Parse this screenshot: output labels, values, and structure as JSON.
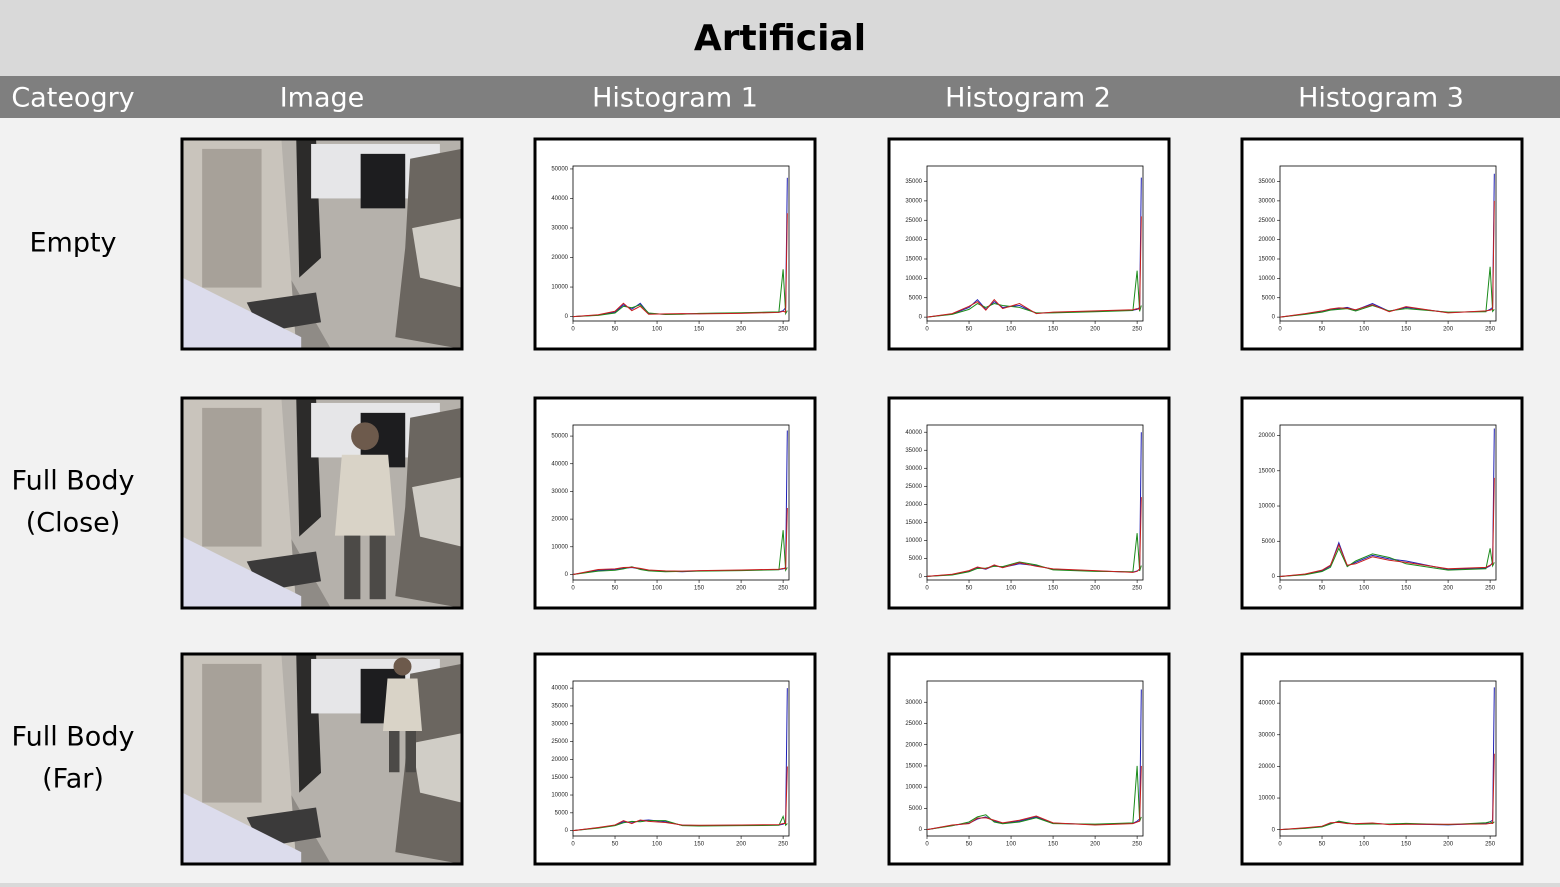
{
  "title": "Artificial",
  "headers": [
    "Cateogry",
    "Image",
    "Histogram 1",
    "Histogram 2",
    "Histogram 3"
  ],
  "rows": [
    {
      "category": [
        "Empty"
      ],
      "histograms": [
        {
          "type": "line",
          "x": [
            0,
            30,
            50,
            60,
            70,
            80,
            90,
            110,
            130,
            150,
            200,
            245,
            250,
            253,
            255
          ],
          "xlim": [
            0,
            257
          ],
          "xticks": [
            0,
            50,
            100,
            150,
            200,
            250
          ],
          "ylim": [
            -1500,
            51000
          ],
          "yticks": [
            0,
            10000,
            20000,
            30000,
            40000,
            50000
          ],
          "series": [
            {
              "color": "#1f1fb4",
              "values": [
                0,
                500,
                1500,
                4000,
                2500,
                4500,
                1000,
                800,
                900,
                1000,
                1200,
                1500,
                2000,
                3000,
                47000
              ]
            },
            {
              "color": "#1a8a1a",
              "values": [
                0,
                400,
                1200,
                3500,
                3000,
                4000,
                1200,
                700,
                800,
                1100,
                1300,
                1600,
                16000,
                1000,
                2000
              ]
            },
            {
              "color": "#c81e1e",
              "values": [
                0,
                600,
                1800,
                4500,
                2000,
                3500,
                800,
                900,
                1000,
                900,
                1100,
                1400,
                1800,
                1500,
                35000
              ]
            }
          ]
        },
        {
          "type": "line",
          "x": [
            0,
            30,
            50,
            60,
            70,
            80,
            90,
            110,
            130,
            150,
            200,
            245,
            250,
            253,
            255
          ],
          "xlim": [
            0,
            257
          ],
          "xticks": [
            0,
            50,
            100,
            150,
            200,
            250
          ],
          "ylim": [
            -1000,
            39000
          ],
          "yticks": [
            0,
            5000,
            10000,
            15000,
            20000,
            25000,
            30000,
            35000
          ],
          "series": [
            {
              "color": "#1f1fb4",
              "values": [
                0,
                800,
                2500,
                4500,
                2000,
                4000,
                2500,
                3000,
                1000,
                1200,
                1500,
                1800,
                2000,
                2500,
                36000
              ]
            },
            {
              "color": "#1a8a1a",
              "values": [
                0,
                700,
                2000,
                3500,
                2500,
                3500,
                3000,
                2500,
                1100,
                1100,
                1400,
                1700,
                12000,
                1500,
                3000
              ]
            },
            {
              "color": "#c81e1e",
              "values": [
                0,
                900,
                2800,
                4000,
                1800,
                4500,
                2200,
                3500,
                900,
                1300,
                1600,
                1900,
                2200,
                2000,
                26000
              ]
            }
          ]
        },
        {
          "type": "line",
          "x": [
            0,
            30,
            50,
            60,
            70,
            80,
            90,
            110,
            130,
            150,
            200,
            245,
            250,
            253,
            255
          ],
          "xlim": [
            0,
            257
          ],
          "xticks": [
            0,
            50,
            100,
            150,
            200,
            250
          ],
          "ylim": [
            -1000,
            39000
          ],
          "yticks": [
            0,
            5000,
            10000,
            15000,
            20000,
            25000,
            30000,
            35000
          ],
          "series": [
            {
              "color": "#1f1fb4",
              "values": [
                0,
                800,
                1500,
                2000,
                2200,
                2500,
                1800,
                3500,
                1500,
                2500,
                1200,
                1500,
                2000,
                2500,
                37000
              ]
            },
            {
              "color": "#1a8a1a",
              "values": [
                0,
                700,
                1300,
                1800,
                2000,
                2200,
                1600,
                3000,
                1600,
                2200,
                1300,
                1400,
                13000,
                1500,
                2000
              ]
            },
            {
              "color": "#c81e1e",
              "values": [
                0,
                900,
                1600,
                2100,
                2400,
                2300,
                1900,
                3200,
                1400,
                2700,
                1100,
                1600,
                1800,
                2000,
                30000
              ]
            }
          ]
        }
      ]
    },
    {
      "category": [
        "Full Body",
        "(Close)"
      ],
      "histograms": [
        {
          "type": "line",
          "x": [
            0,
            30,
            50,
            60,
            70,
            80,
            90,
            110,
            130,
            150,
            200,
            245,
            250,
            253,
            255
          ],
          "xlim": [
            0,
            257
          ],
          "xticks": [
            0,
            50,
            100,
            150,
            200,
            250
          ],
          "ylim": [
            -2000,
            54000
          ],
          "yticks": [
            0,
            10000,
            20000,
            30000,
            40000,
            50000
          ],
          "series": [
            {
              "color": "#1f1fb4",
              "values": [
                0,
                1500,
                1800,
                2200,
                2500,
                2000,
                1500,
                1200,
                1000,
                1300,
                1500,
                1800,
                2000,
                2500,
                52000
              ]
            },
            {
              "color": "#1a8a1a",
              "values": [
                0,
                1200,
                1500,
                2000,
                2800,
                1800,
                1300,
                1000,
                1100,
                1200,
                1400,
                1700,
                16000,
                1500,
                2500
              ]
            },
            {
              "color": "#c81e1e",
              "values": [
                0,
                1800,
                2000,
                2500,
                2600,
                2200,
                1600,
                1300,
                1200,
                1400,
                1600,
                1900,
                2200,
                2000,
                24000
              ]
            }
          ]
        },
        {
          "type": "line",
          "x": [
            0,
            30,
            50,
            60,
            70,
            80,
            90,
            110,
            130,
            150,
            200,
            245,
            250,
            253,
            255
          ],
          "xlim": [
            0,
            257
          ],
          "xticks": [
            0,
            50,
            100,
            150,
            200,
            250
          ],
          "ylim": [
            -1000,
            42000
          ],
          "yticks": [
            0,
            5000,
            10000,
            15000,
            20000,
            25000,
            30000,
            35000,
            40000
          ],
          "series": [
            {
              "color": "#1f1fb4",
              "values": [
                0,
                500,
                1500,
                2500,
                2000,
                3000,
                2500,
                3500,
                3000,
                2000,
                1500,
                1200,
                1500,
                2000,
                40000
              ]
            },
            {
              "color": "#1a8a1a",
              "values": [
                0,
                400,
                1300,
                2200,
                2300,
                2800,
                2700,
                4000,
                3200,
                1800,
                1400,
                1300,
                12000,
                1500,
                3000
              ]
            },
            {
              "color": "#c81e1e",
              "values": [
                0,
                600,
                1600,
                2600,
                2100,
                3200,
                2400,
                3800,
                2800,
                2100,
                1600,
                1100,
                1400,
                2000,
                22000
              ]
            }
          ]
        },
        {
          "type": "line",
          "x": [
            0,
            30,
            50,
            60,
            70,
            80,
            90,
            110,
            130,
            150,
            200,
            245,
            250,
            253,
            255
          ],
          "xlim": [
            0,
            257
          ],
          "xticks": [
            0,
            50,
            100,
            150,
            200,
            250
          ],
          "ylim": [
            -500,
            21500
          ],
          "yticks": [
            0,
            5000,
            10000,
            15000,
            20000
          ],
          "series": [
            {
              "color": "#1f1fb4",
              "values": [
                0,
                300,
                800,
                1500,
                4800,
                1500,
                2000,
                3000,
                2500,
                2200,
                1000,
                1200,
                1500,
                2000,
                21000
              ]
            },
            {
              "color": "#1a8a1a",
              "values": [
                0,
                250,
                700,
                1300,
                4000,
                1400,
                2200,
                3200,
                2700,
                1800,
                900,
                1100,
                4000,
                1500,
                2000
              ]
            },
            {
              "color": "#c81e1e",
              "values": [
                0,
                350,
                900,
                1600,
                4500,
                1600,
                1800,
                2800,
                2300,
                2000,
                1100,
                1300,
                1600,
                1800,
                14000
              ]
            }
          ]
        }
      ]
    },
    {
      "category": [
        "Full Body",
        "(Far)"
      ],
      "histograms": [
        {
          "type": "line",
          "x": [
            0,
            30,
            50,
            60,
            70,
            80,
            90,
            110,
            130,
            150,
            200,
            245,
            250,
            253,
            255
          ],
          "xlim": [
            0,
            257
          ],
          "xticks": [
            0,
            50,
            100,
            150,
            200,
            250
          ],
          "ylim": [
            -1500,
            42000
          ],
          "yticks": [
            0,
            5000,
            10000,
            15000,
            20000,
            25000,
            30000,
            35000,
            40000
          ],
          "series": [
            {
              "color": "#1f1fb4",
              "values": [
                0,
                800,
                1500,
                2500,
                2200,
                2800,
                3000,
                2500,
                1500,
                1400,
                1500,
                1600,
                1800,
                2500,
                40000
              ]
            },
            {
              "color": "#1a8a1a",
              "values": [
                0,
                700,
                1400,
                2200,
                2600,
                2500,
                2800,
                2800,
                1400,
                1300,
                1400,
                1500,
                4000,
                1500,
                2000
              ]
            },
            {
              "color": "#c81e1e",
              "values": [
                0,
                900,
                1600,
                2800,
                2000,
                3000,
                2600,
                2300,
                1600,
                1500,
                1600,
                1700,
                2000,
                2000,
                18000
              ]
            }
          ]
        },
        {
          "type": "line",
          "x": [
            0,
            30,
            50,
            60,
            70,
            80,
            90,
            110,
            130,
            150,
            200,
            245,
            250,
            253,
            255
          ],
          "xlim": [
            0,
            257
          ],
          "xticks": [
            0,
            50,
            100,
            150,
            200,
            250
          ],
          "ylim": [
            -1500,
            35000
          ],
          "yticks": [
            0,
            5000,
            10000,
            15000,
            20000,
            25000,
            30000
          ],
          "series": [
            {
              "color": "#1f1fb4",
              "values": [
                0,
                1000,
                1500,
                2500,
                3000,
                2000,
                1500,
                2000,
                3000,
                1500,
                1200,
                1500,
                2000,
                2500,
                33000
              ]
            },
            {
              "color": "#1a8a1a",
              "values": [
                0,
                900,
                1800,
                3000,
                3500,
                1800,
                1400,
                1800,
                2800,
                1400,
                1300,
                1600,
                15000,
                2000,
                3000
              ]
            },
            {
              "color": "#c81e1e",
              "values": [
                0,
                1100,
                1400,
                2700,
                2800,
                2200,
                1600,
                2200,
                3200,
                1600,
                1100,
                1400,
                1800,
                2000,
                15000
              ]
            }
          ]
        },
        {
          "type": "line",
          "x": [
            0,
            30,
            50,
            60,
            70,
            80,
            90,
            110,
            130,
            150,
            200,
            245,
            250,
            253,
            255
          ],
          "xlim": [
            0,
            257
          ],
          "xticks": [
            0,
            50,
            100,
            150,
            200,
            250
          ],
          "ylim": [
            -2000,
            47000
          ],
          "yticks": [
            0,
            10000,
            20000,
            30000,
            40000
          ],
          "series": [
            {
              "color": "#1f1fb4",
              "values": [
                0,
                500,
                1000,
                2000,
                2500,
                2000,
                1800,
                2000,
                1700,
                1800,
                1500,
                2000,
                2500,
                3000,
                45000
              ]
            },
            {
              "color": "#1a8a1a",
              "values": [
                0,
                400,
                900,
                1800,
                2700,
                2200,
                1700,
                1800,
                1800,
                2000,
                1600,
                2200,
                2500,
                2000,
                2500
              ]
            },
            {
              "color": "#c81e1e",
              "values": [
                0,
                600,
                1100,
                2200,
                2300,
                1900,
                1900,
                2100,
                1600,
                1700,
                1700,
                1800,
                2000,
                2000,
                24000
              ]
            }
          ]
        }
      ]
    }
  ]
}
